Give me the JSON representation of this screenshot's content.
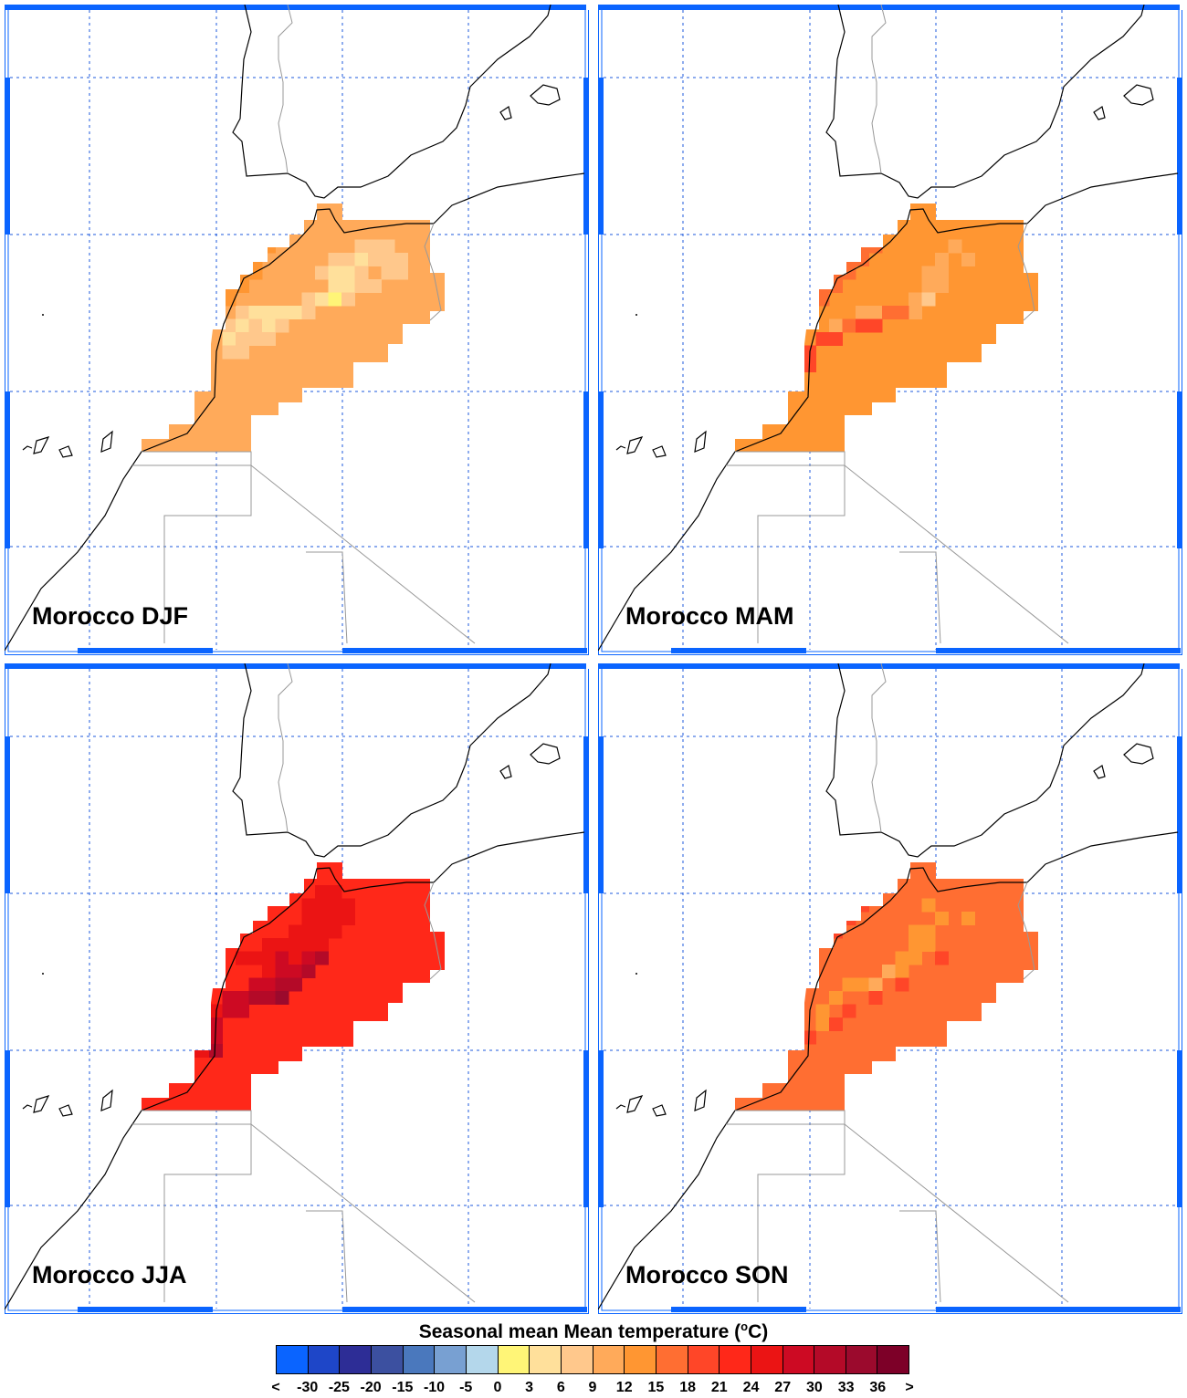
{
  "colorbar": {
    "title": "Seasonal mean Mean temperature (",
    "title_unit_sup": "o",
    "title_unit_end": "C)",
    "colors": [
      "#0a64ff",
      "#1e46c8",
      "#2d2d96",
      "#3c50a0",
      "#4a78bd",
      "#78a0d2",
      "#b4d7eb",
      "#fff577",
      "#ffe09b",
      "#ffc88c",
      "#ffaa5a",
      "#ff9632",
      "#ff6e32",
      "#ff4628",
      "#ff2819",
      "#eb1414",
      "#cd0a23",
      "#b40a28",
      "#9b0a2d",
      "#7d0028"
    ],
    "labels": [
      "<",
      "-30",
      "-25",
      "-20",
      "-15",
      "-10",
      "-5",
      "0",
      "3",
      "6",
      "9",
      "12",
      "15",
      "18",
      "21",
      "24",
      "27",
      "30",
      "33",
      "36",
      ">"
    ]
  },
  "panels": [
    {
      "title": "Morocco DJF",
      "season": "DJF",
      "base_color": "#ffaa5a",
      "cells": [
        {
          "r": 3,
          "c": 13,
          "color": "#ffc88c"
        },
        {
          "r": 3,
          "c": 14,
          "color": "#ffc88c"
        },
        {
          "r": 3,
          "c": 15,
          "color": "#ffc88c"
        },
        {
          "r": 4,
          "c": 11,
          "color": "#ffc88c"
        },
        {
          "r": 4,
          "c": 12,
          "color": "#ffc88c"
        },
        {
          "r": 4,
          "c": 13,
          "color": "#ffe09b"
        },
        {
          "r": 4,
          "c": 14,
          "color": "#ffc88c"
        },
        {
          "r": 4,
          "c": 15,
          "color": "#ffc88c"
        },
        {
          "r": 4,
          "c": 16,
          "color": "#ffc88c"
        },
        {
          "r": 5,
          "c": 10,
          "color": "#ffc88c"
        },
        {
          "r": 5,
          "c": 11,
          "color": "#ffe09b"
        },
        {
          "r": 5,
          "c": 12,
          "color": "#ffe09b"
        },
        {
          "r": 5,
          "c": 13,
          "color": "#ffc88c"
        },
        {
          "r": 5,
          "c": 15,
          "color": "#ffc88c"
        },
        {
          "r": 5,
          "c": 16,
          "color": "#ffc88c"
        },
        {
          "r": 6,
          "c": 11,
          "color": "#ffe09b"
        },
        {
          "r": 6,
          "c": 12,
          "color": "#ffe09b"
        },
        {
          "r": 6,
          "c": 13,
          "color": "#ffc88c"
        },
        {
          "r": 6,
          "c": 14,
          "color": "#ffc88c"
        },
        {
          "r": 7,
          "c": 9,
          "color": "#ffc88c"
        },
        {
          "r": 7,
          "c": 10,
          "color": "#ffe09b"
        },
        {
          "r": 7,
          "c": 11,
          "color": "#fff577"
        },
        {
          "r": 7,
          "c": 12,
          "color": "#ffc88c"
        },
        {
          "r": 8,
          "c": 4,
          "color": "#ffc88c"
        },
        {
          "r": 8,
          "c": 5,
          "color": "#ffe09b"
        },
        {
          "r": 8,
          "c": 6,
          "color": "#ffe09b"
        },
        {
          "r": 8,
          "c": 7,
          "color": "#ffe09b"
        },
        {
          "r": 8,
          "c": 8,
          "color": "#ffe09b"
        },
        {
          "r": 8,
          "c": 9,
          "color": "#ffc88c"
        },
        {
          "r": 9,
          "c": 3,
          "color": "#ffc88c"
        },
        {
          "r": 9,
          "c": 4,
          "color": "#ffe09b"
        },
        {
          "r": 9,
          "c": 5,
          "color": "#ffc88c"
        },
        {
          "r": 9,
          "c": 6,
          "color": "#ffe09b"
        },
        {
          "r": 9,
          "c": 7,
          "color": "#ffc88c"
        },
        {
          "r": 10,
          "c": 3,
          "color": "#ffe09b"
        },
        {
          "r": 10,
          "c": 4,
          "color": "#ffc88c"
        },
        {
          "r": 10,
          "c": 5,
          "color": "#ffc88c"
        },
        {
          "r": 10,
          "c": 6,
          "color": "#ffc88c"
        },
        {
          "r": 11,
          "c": 3,
          "color": "#ffc88c"
        },
        {
          "r": 11,
          "c": 4,
          "color": "#ffc88c"
        },
        {
          "r": 2,
          "c": 7,
          "color": "#ff9632"
        },
        {
          "r": 3,
          "c": 6,
          "color": "#ff9632"
        },
        {
          "r": 4,
          "c": 5,
          "color": "#ff9632"
        },
        {
          "r": 5,
          "c": 4,
          "color": "#ff9632"
        },
        {
          "r": 5,
          "c": 5,
          "color": "#ff9632"
        },
        {
          "r": 6,
          "c": 3,
          "color": "#ff9632"
        },
        {
          "r": 6,
          "c": 4,
          "color": "#ff9632"
        },
        {
          "r": 7,
          "c": 2,
          "color": "#ff9632"
        },
        {
          "r": 7,
          "c": 3,
          "color": "#ff9632"
        },
        {
          "r": 8,
          "c": 1,
          "color": "#ff9632"
        },
        {
          "r": 8,
          "c": 2,
          "color": "#ff9632"
        },
        {
          "r": 9,
          "c": 0,
          "color": "#ff9632"
        },
        {
          "r": 9,
          "c": 1,
          "color": "#ff9632"
        },
        {
          "r": 10,
          "c": 0,
          "color": "#ff9632"
        },
        {
          "r": 10,
          "c": 1,
          "color": "#ff9632"
        },
        {
          "r": 11,
          "c": -2,
          "color": "#ff9632"
        },
        {
          "r": 11,
          "c": -1,
          "color": "#ff9632"
        },
        {
          "r": 11,
          "c": 0,
          "color": "#ff9632"
        },
        {
          "r": 11,
          "c": 1,
          "color": "#ff9632"
        },
        {
          "r": 12,
          "c": -3,
          "color": "#ff6e32"
        },
        {
          "r": 12,
          "c": -2,
          "color": "#ff6e32"
        },
        {
          "r": 12,
          "c": -1,
          "color": "#ff9632"
        },
        {
          "r": 12,
          "c": 0,
          "color": "#ff9632"
        }
      ]
    },
    {
      "title": "Morocco MAM",
      "season": "MAM",
      "base_color": "#ff9632",
      "cells": [
        {
          "r": 3,
          "c": 13,
          "color": "#ffaa5a"
        },
        {
          "r": 4,
          "c": 12,
          "color": "#ffaa5a"
        },
        {
          "r": 4,
          "c": 14,
          "color": "#ffaa5a"
        },
        {
          "r": 5,
          "c": 11,
          "color": "#ffaa5a"
        },
        {
          "r": 5,
          "c": 12,
          "color": "#ffaa5a"
        },
        {
          "r": 6,
          "c": 11,
          "color": "#ffaa5a"
        },
        {
          "r": 6,
          "c": 12,
          "color": "#ffaa5a"
        },
        {
          "r": 7,
          "c": 10,
          "color": "#ffaa5a"
        },
        {
          "r": 7,
          "c": 11,
          "color": "#ffc88c"
        },
        {
          "r": 8,
          "c": 6,
          "color": "#ffaa5a"
        },
        {
          "r": 8,
          "c": 7,
          "color": "#ffaa5a"
        },
        {
          "r": 8,
          "c": 10,
          "color": "#ffaa5a"
        },
        {
          "r": 9,
          "c": 4,
          "color": "#ffaa5a"
        },
        {
          "r": 2,
          "c": 7,
          "color": "#ff6e32"
        },
        {
          "r": 3,
          "c": 6,
          "color": "#ff6e32"
        },
        {
          "r": 3,
          "c": 7,
          "color": "#ff6e32"
        },
        {
          "r": 4,
          "c": 5,
          "color": "#ff6e32"
        },
        {
          "r": 4,
          "c": 6,
          "color": "#ff6e32"
        },
        {
          "r": 5,
          "c": 4,
          "color": "#ff6e32"
        },
        {
          "r": 5,
          "c": 5,
          "color": "#ff6e32"
        },
        {
          "r": 6,
          "c": 3,
          "color": "#ff6e32"
        },
        {
          "r": 6,
          "c": 4,
          "color": "#ff6e32"
        },
        {
          "r": 7,
          "c": 2,
          "color": "#ff6e32"
        },
        {
          "r": 7,
          "c": 3,
          "color": "#ff6e32"
        },
        {
          "r": 8,
          "c": 1,
          "color": "#ff6e32"
        },
        {
          "r": 8,
          "c": 2,
          "color": "#ff6e32"
        },
        {
          "r": 9,
          "c": 0,
          "color": "#ff6e32"
        },
        {
          "r": 9,
          "c": 1,
          "color": "#ff6e32"
        },
        {
          "r": 10,
          "c": 0,
          "color": "#ff6e32"
        },
        {
          "r": 10,
          "c": 1,
          "color": "#ff4628"
        },
        {
          "r": 11,
          "c": -2,
          "color": "#ff4628"
        },
        {
          "r": 11,
          "c": -1,
          "color": "#ff4628"
        },
        {
          "r": 11,
          "c": 0,
          "color": "#ff4628"
        },
        {
          "r": 11,
          "c": 1,
          "color": "#ff6e32"
        },
        {
          "r": 12,
          "c": -3,
          "color": "#ff4628"
        },
        {
          "r": 12,
          "c": -2,
          "color": "#ff4628"
        },
        {
          "r": 12,
          "c": -1,
          "color": "#ff4628"
        },
        {
          "r": 12,
          "c": 0,
          "color": "#ff4628"
        },
        {
          "r": 12,
          "c": 1,
          "color": "#ff4628"
        },
        {
          "r": 12,
          "c": 2,
          "color": "#ff4628"
        },
        {
          "r": 11,
          "c": 2,
          "color": "#ff4628"
        },
        {
          "r": 10,
          "c": 3,
          "color": "#ff4628"
        },
        {
          "r": 10,
          "c": 4,
          "color": "#ff4628"
        },
        {
          "r": 9,
          "c": 5,
          "color": "#ff6e32"
        },
        {
          "r": 9,
          "c": 6,
          "color": "#ff4628"
        },
        {
          "r": 9,
          "c": 7,
          "color": "#ff4628"
        },
        {
          "r": 8,
          "c": 8,
          "color": "#ff6e32"
        },
        {
          "r": 8,
          "c": 9,
          "color": "#ff6e32"
        }
      ]
    },
    {
      "title": "Morocco JJA",
      "season": "JJA",
      "base_color": "#ff2819",
      "cells": [
        {
          "r": 2,
          "c": 10,
          "color": "#eb1414"
        },
        {
          "r": 2,
          "c": 11,
          "color": "#eb1414"
        },
        {
          "r": 3,
          "c": 9,
          "color": "#eb1414"
        },
        {
          "r": 3,
          "c": 10,
          "color": "#eb1414"
        },
        {
          "r": 3,
          "c": 11,
          "color": "#eb1414"
        },
        {
          "r": 3,
          "c": 12,
          "color": "#eb1414"
        },
        {
          "r": 4,
          "c": 9,
          "color": "#eb1414"
        },
        {
          "r": 4,
          "c": 10,
          "color": "#eb1414"
        },
        {
          "r": 4,
          "c": 11,
          "color": "#eb1414"
        },
        {
          "r": 4,
          "c": 12,
          "color": "#eb1414"
        },
        {
          "r": 5,
          "c": 8,
          "color": "#eb1414"
        },
        {
          "r": 5,
          "c": 9,
          "color": "#eb1414"
        },
        {
          "r": 5,
          "c": 10,
          "color": "#eb1414"
        },
        {
          "r": 5,
          "c": 11,
          "color": "#eb1414"
        },
        {
          "r": 6,
          "c": 6,
          "color": "#eb1414"
        },
        {
          "r": 6,
          "c": 7,
          "color": "#eb1414"
        },
        {
          "r": 6,
          "c": 8,
          "color": "#eb1414"
        },
        {
          "r": 6,
          "c": 9,
          "color": "#eb1414"
        },
        {
          "r": 6,
          "c": 10,
          "color": "#eb1414"
        },
        {
          "r": 7,
          "c": 4,
          "color": "#eb1414"
        },
        {
          "r": 7,
          "c": 5,
          "color": "#eb1414"
        },
        {
          "r": 7,
          "c": 6,
          "color": "#eb1414"
        },
        {
          "r": 7,
          "c": 7,
          "color": "#cd0a23"
        },
        {
          "r": 7,
          "c": 8,
          "color": "#eb1414"
        },
        {
          "r": 7,
          "c": 9,
          "color": "#cd0a23"
        },
        {
          "r": 7,
          "c": 10,
          "color": "#b40a28"
        },
        {
          "r": 8,
          "c": 6,
          "color": "#eb1414"
        },
        {
          "r": 8,
          "c": 7,
          "color": "#cd0a23"
        },
        {
          "r": 8,
          "c": 8,
          "color": "#cd0a23"
        },
        {
          "r": 8,
          "c": 9,
          "color": "#b40a28"
        },
        {
          "r": 9,
          "c": 5,
          "color": "#cd0a23"
        },
        {
          "r": 9,
          "c": 6,
          "color": "#cd0a23"
        },
        {
          "r": 9,
          "c": 7,
          "color": "#b40a28"
        },
        {
          "r": 9,
          "c": 8,
          "color": "#b40a28"
        },
        {
          "r": 10,
          "c": 3,
          "color": "#cd0a23"
        },
        {
          "r": 10,
          "c": 4,
          "color": "#cd0a23"
        },
        {
          "r": 10,
          "c": 5,
          "color": "#b40a28"
        },
        {
          "r": 10,
          "c": 6,
          "color": "#b40a28"
        },
        {
          "r": 10,
          "c": 7,
          "color": "#9b0a2d"
        },
        {
          "r": 11,
          "c": 2,
          "color": "#eb1414"
        },
        {
          "r": 11,
          "c": 3,
          "color": "#cd0a23"
        },
        {
          "r": 11,
          "c": 4,
          "color": "#cd0a23"
        },
        {
          "r": 12,
          "c": 0,
          "color": "#eb1414"
        },
        {
          "r": 12,
          "c": 1,
          "color": "#eb1414"
        },
        {
          "r": 12,
          "c": 2,
          "color": "#cd0a23"
        },
        {
          "r": 13,
          "c": -2,
          "color": "#eb1414"
        },
        {
          "r": 13,
          "c": -1,
          "color": "#eb1414"
        },
        {
          "r": 13,
          "c": 0,
          "color": "#eb1414"
        },
        {
          "r": 13,
          "c": 1,
          "color": "#eb1414"
        },
        {
          "r": 13,
          "c": 2,
          "color": "#cd0a23"
        },
        {
          "r": 14,
          "c": -3,
          "color": "#eb1414"
        },
        {
          "r": 14,
          "c": -2,
          "color": "#eb1414"
        },
        {
          "r": 14,
          "c": -1,
          "color": "#eb1414"
        },
        {
          "r": 14,
          "c": 0,
          "color": "#eb1414"
        },
        {
          "r": 14,
          "c": 1,
          "color": "#eb1414"
        },
        {
          "r": 14,
          "c": 2,
          "color": "#b40a28"
        }
      ]
    },
    {
      "title": "Morocco SON",
      "season": "SON",
      "base_color": "#ff6e32",
      "cells": [
        {
          "r": 3,
          "c": 11,
          "color": "#ff9632"
        },
        {
          "r": 4,
          "c": 12,
          "color": "#ff9632"
        },
        {
          "r": 4,
          "c": 14,
          "color": "#ff9632"
        },
        {
          "r": 5,
          "c": 10,
          "color": "#ff9632"
        },
        {
          "r": 5,
          "c": 11,
          "color": "#ff9632"
        },
        {
          "r": 6,
          "c": 10,
          "color": "#ff9632"
        },
        {
          "r": 6,
          "c": 11,
          "color": "#ff9632"
        },
        {
          "r": 7,
          "c": 9,
          "color": "#ff9632"
        },
        {
          "r": 7,
          "c": 10,
          "color": "#ff9632"
        },
        {
          "r": 8,
          "c": 8,
          "color": "#ffaa5a"
        },
        {
          "r": 8,
          "c": 9,
          "color": "#ff9632"
        },
        {
          "r": 9,
          "c": 5,
          "color": "#ff9632"
        },
        {
          "r": 9,
          "c": 6,
          "color": "#ff9632"
        },
        {
          "r": 9,
          "c": 7,
          "color": "#ffaa5a"
        },
        {
          "r": 10,
          "c": 4,
          "color": "#ff9632"
        },
        {
          "r": 11,
          "c": 3,
          "color": "#ff9632"
        },
        {
          "r": 12,
          "c": 3,
          "color": "#ff9632"
        },
        {
          "r": 8,
          "c": 1,
          "color": "#ff4628"
        },
        {
          "r": 9,
          "c": 1,
          "color": "#ff4628"
        },
        {
          "r": 10,
          "c": 0,
          "color": "#ff4628"
        },
        {
          "r": 11,
          "c": -1,
          "color": "#ff4628"
        },
        {
          "r": 12,
          "c": -2,
          "color": "#ff4628"
        },
        {
          "r": 13,
          "c": -3,
          "color": "#ff4628"
        },
        {
          "r": 13,
          "c": -2,
          "color": "#ff4628"
        },
        {
          "r": 13,
          "c": -1,
          "color": "#ff4628"
        },
        {
          "r": 13,
          "c": 0,
          "color": "#ff4628"
        },
        {
          "r": 13,
          "c": 1,
          "color": "#ff4628"
        },
        {
          "r": 13,
          "c": 2,
          "color": "#ff4628"
        },
        {
          "r": 12,
          "c": 4,
          "color": "#ff4628"
        },
        {
          "r": 11,
          "c": 5,
          "color": "#ff4628"
        },
        {
          "r": 10,
          "c": 7,
          "color": "#ff4628"
        },
        {
          "r": 9,
          "c": 9,
          "color": "#ff4628"
        },
        {
          "r": 7,
          "c": 12,
          "color": "#ff4628"
        },
        {
          "r": 3,
          "c": 6,
          "color": "#ff4628"
        },
        {
          "r": 4,
          "c": 5,
          "color": "#ff4628"
        },
        {
          "r": 5,
          "c": 4,
          "color": "#ff4628"
        }
      ]
    }
  ]
}
